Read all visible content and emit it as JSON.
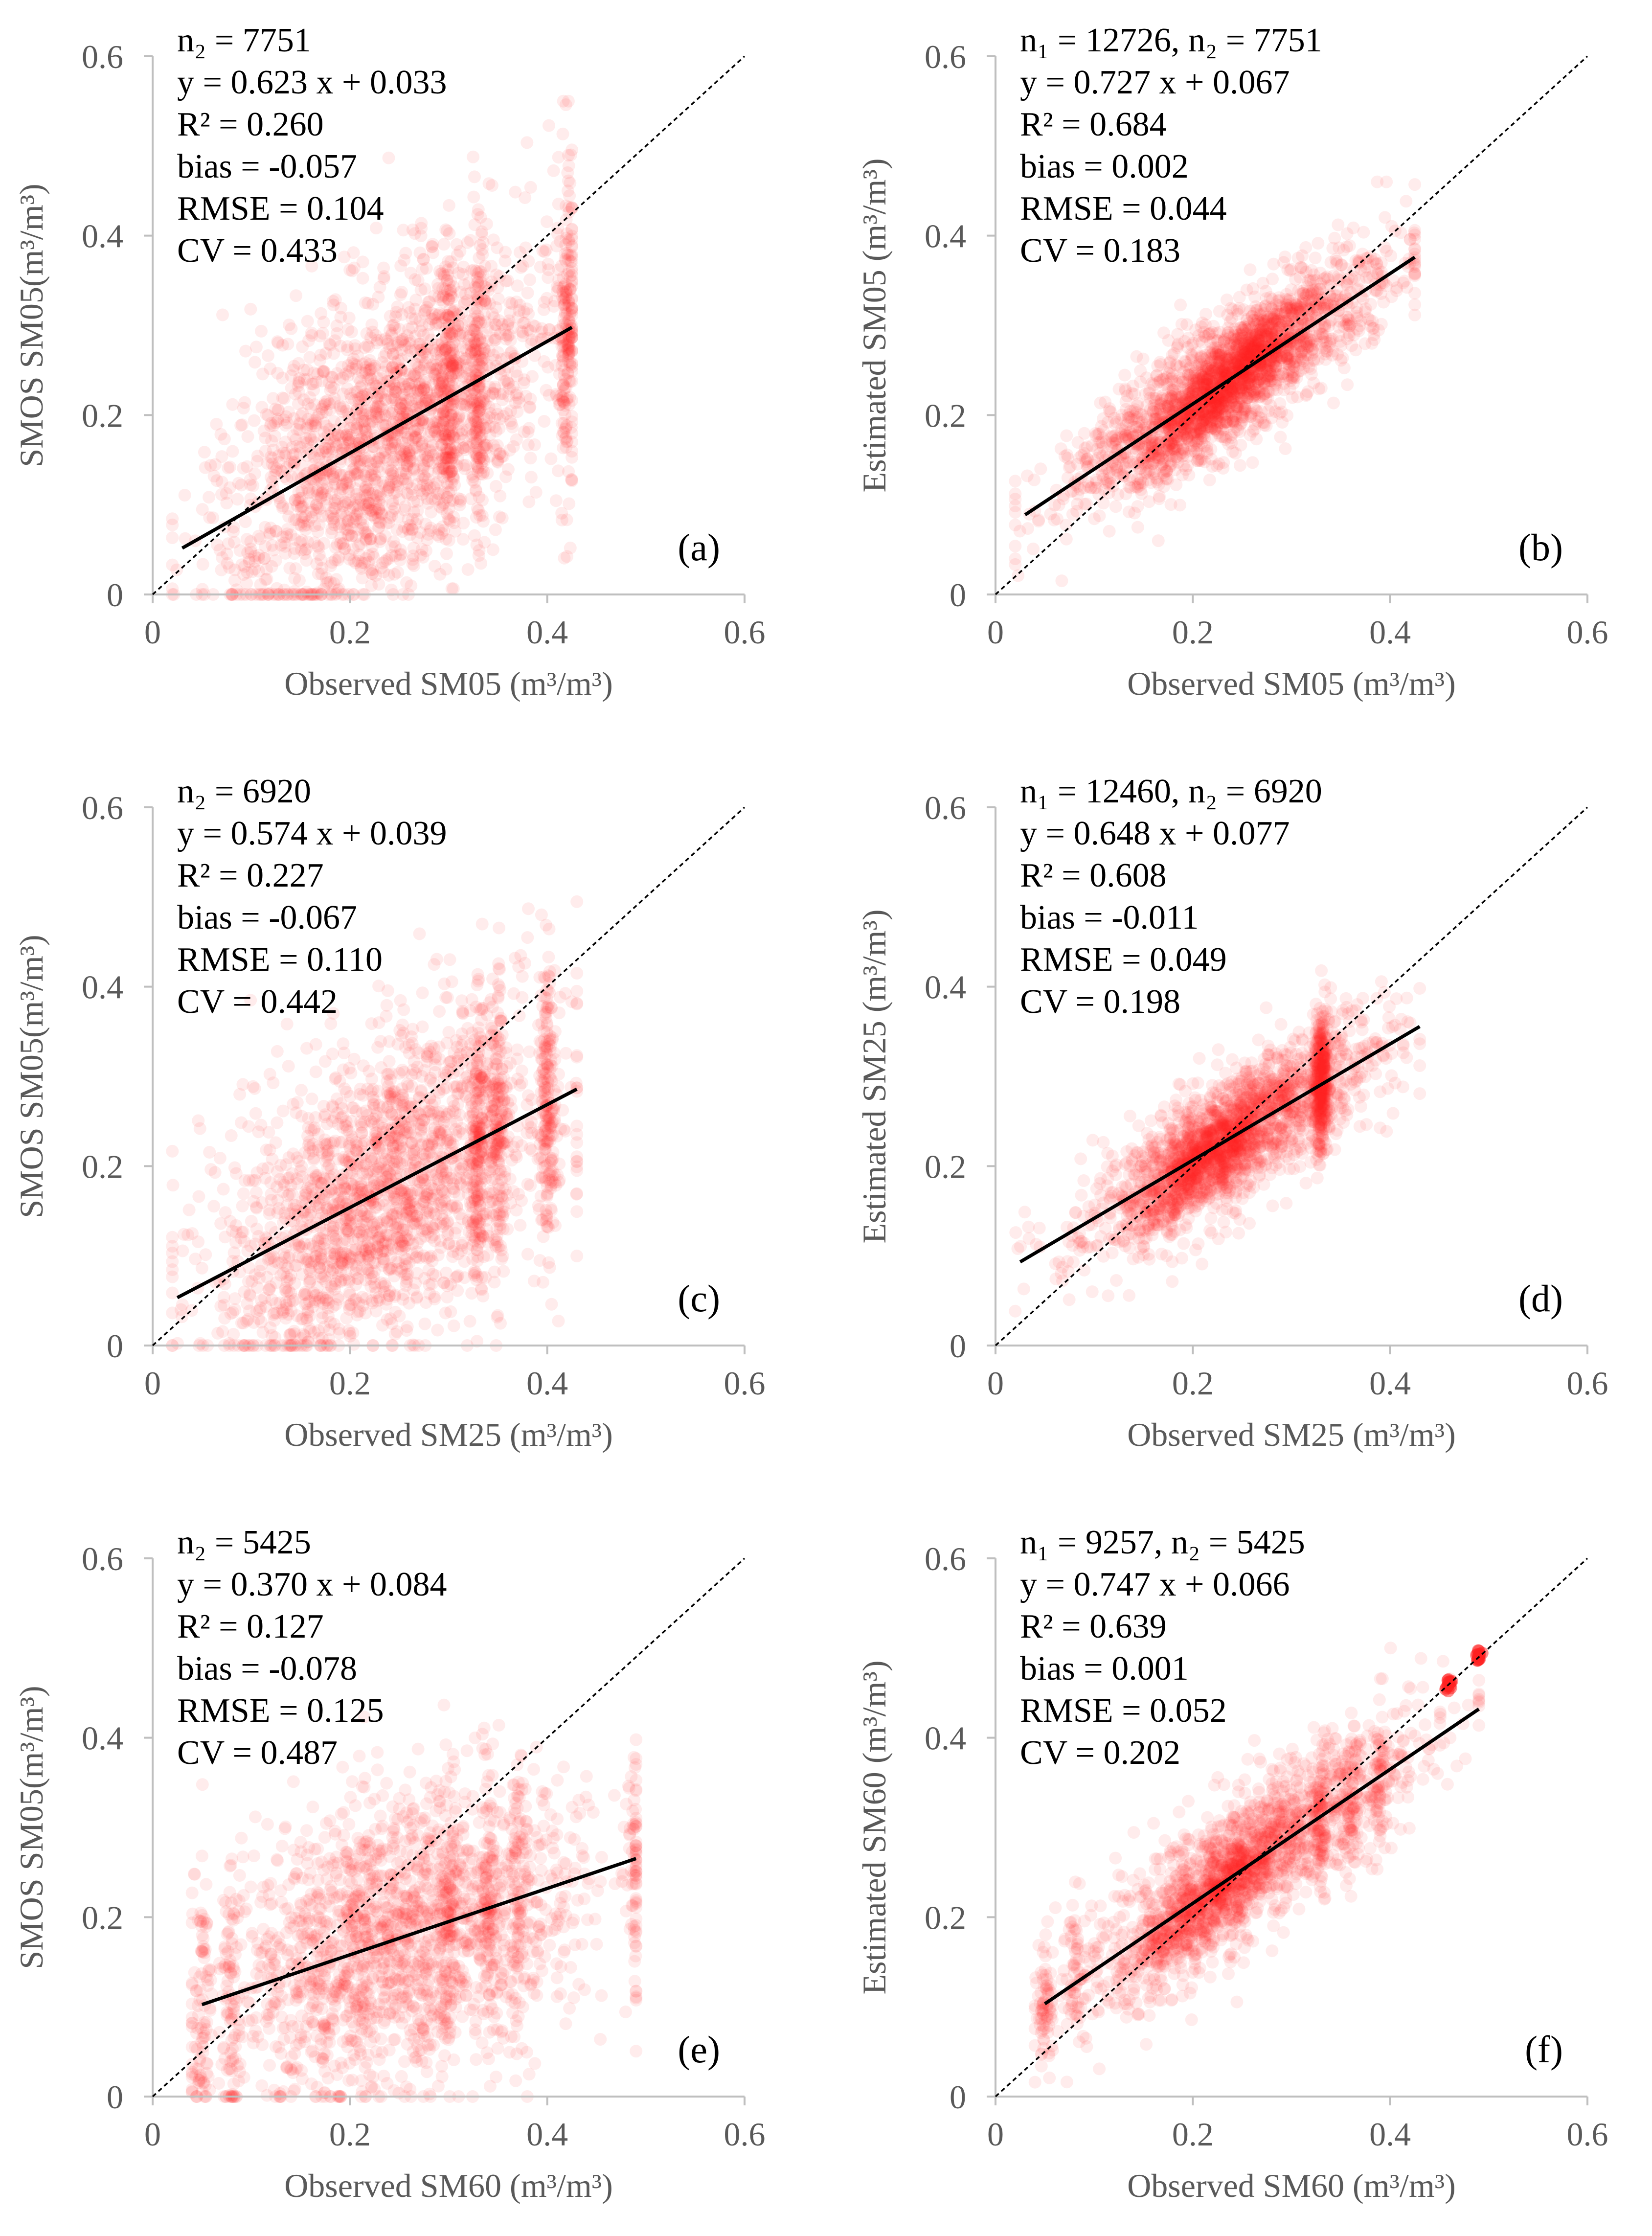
{
  "figure": {
    "colors": {
      "points": "#ff2020",
      "fit_line": "#000000",
      "identity_line": "#000000",
      "axis": "#bfbfbf",
      "tick_text": "#595959"
    }
  },
  "chart_data": [
    {
      "type": "scatter",
      "panel": "(a)",
      "xlabel": "Observed SM05 (m³/m³)",
      "ylabel": "SMOS SM05(m³/m³)",
      "xlim": [
        0,
        0.6
      ],
      "ylim": [
        0,
        0.6
      ],
      "xticks": [
        "0",
        "0.2",
        "0.4",
        "0.6"
      ],
      "yticks": [
        "0",
        "0.2",
        "0.4",
        "0.6"
      ],
      "stats": [
        "n₂ = 7751",
        "y = 0.623 x + 0.033",
        "R² = 0.260",
        "bias = -0.057",
        "RMSE = 0.104",
        "CV = 0.433"
      ],
      "fit": {
        "slope": 0.623,
        "intercept": 0.033,
        "x_range": [
          0.03,
          0.425
        ]
      },
      "cloud": {
        "seed": 11,
        "count": 2600,
        "x_range": [
          0.02,
          0.425
        ],
        "x_center": 0.24,
        "x_sd": 0.085,
        "noise_sd": 0.085,
        "y_max": 0.55,
        "stripes": [
          0.3,
          0.33,
          0.42
        ],
        "saturation": [],
        "cluster": null
      }
    },
    {
      "type": "scatter",
      "panel": "(b)",
      "xlabel": "Observed SM05 (m³/m³)",
      "ylabel": "Estimated SM05 (m³/m³)",
      "xlim": [
        0,
        0.6
      ],
      "ylim": [
        0,
        0.6
      ],
      "xticks": [
        "0",
        "0.2",
        "0.4",
        "0.6"
      ],
      "yticks": [
        "0",
        "0.2",
        "0.4",
        "0.6"
      ],
      "stats": [
        "n₁ = 12726, n₂ = 7751",
        "y = 0.727 x + 0.067",
        "R² = 0.684",
        "bias = 0.002",
        "RMSE = 0.044",
        "CV = 0.183"
      ],
      "fit": {
        "slope": 0.727,
        "intercept": 0.067,
        "x_range": [
          0.03,
          0.425
        ]
      },
      "cloud": {
        "seed": 23,
        "count": 2800,
        "x_range": [
          0.02,
          0.425
        ],
        "x_center": 0.235,
        "x_sd": 0.075,
        "noise_sd": 0.036,
        "y_max": 0.46,
        "stripes": [],
        "saturation": [],
        "cluster": [
          0.24,
          0.225
        ]
      }
    },
    {
      "type": "scatter",
      "panel": "(c)",
      "xlabel": "Observed SM25 (m³/m³)",
      "ylabel": "SMOS SM05(m³/m³)",
      "xlim": [
        0,
        0.6
      ],
      "ylim": [
        0,
        0.6
      ],
      "xticks": [
        "0",
        "0.2",
        "0.4",
        "0.6"
      ],
      "yticks": [
        "0",
        "0.2",
        "0.4",
        "0.6"
      ],
      "stats": [
        "n₂ = 6920",
        "y = 0.574 x + 0.039",
        "R² = 0.227",
        "bias = -0.067",
        "RMSE = 0.110",
        "CV =  0.442"
      ],
      "fit": {
        "slope": 0.574,
        "intercept": 0.039,
        "x_range": [
          0.025,
          0.43
        ]
      },
      "cloud": {
        "seed": 37,
        "count": 2500,
        "x_range": [
          0.02,
          0.43
        ],
        "x_center": 0.23,
        "x_sd": 0.085,
        "noise_sd": 0.085,
        "y_max": 0.55,
        "stripes": [
          0.33,
          0.35,
          0.4
        ],
        "saturation": [],
        "cluster": null
      }
    },
    {
      "type": "scatter",
      "panel": "(d)",
      "xlabel": "Observed SM25 (m³/m³)",
      "ylabel": "Estimated SM25 (m³/m³)",
      "xlim": [
        0,
        0.6
      ],
      "ylim": [
        0,
        0.6
      ],
      "xticks": [
        "0",
        "0.2",
        "0.4",
        "0.6"
      ],
      "yticks": [
        "0",
        "0.2",
        "0.4",
        "0.6"
      ],
      "stats": [
        "n₁ = 12460, n₂ = 6920",
        "y = 0.648 x + 0.077",
        "R² = 0.608",
        "bias = -0.011",
        "RMSE = 0.049",
        "CV = 0.198"
      ],
      "fit": {
        "slope": 0.648,
        "intercept": 0.077,
        "x_range": [
          0.025,
          0.43
        ]
      },
      "cloud": {
        "seed": 41,
        "count": 2700,
        "x_range": [
          0.02,
          0.43
        ],
        "x_center": 0.24,
        "x_sd": 0.075,
        "noise_sd": 0.038,
        "y_max": 0.44,
        "stripes": [
          0.33
        ],
        "saturation": [],
        "cluster": [
          0.22,
          0.2
        ]
      }
    },
    {
      "type": "scatter",
      "panel": "(e)",
      "xlabel": "Observed SM60 (m³/m³)",
      "ylabel": "SMOS SM05(m³/m³)",
      "xlim": [
        0,
        0.6
      ],
      "ylim": [
        0,
        0.6
      ],
      "xticks": [
        "0",
        "0.2",
        "0.4",
        "0.6"
      ],
      "yticks": [
        "0",
        "0.2",
        "0.4",
        "0.6"
      ],
      "stats": [
        "n₂ = 5425",
        "y = 0.370 x + 0.084",
        "R² = 0.127",
        "bias = -0.078",
        "RMSE = 0.125",
        "CV = 0.487"
      ],
      "fit": {
        "slope": 0.37,
        "intercept": 0.084,
        "x_range": [
          0.05,
          0.49
        ]
      },
      "cloud": {
        "seed": 53,
        "count": 2300,
        "x_range": [
          0.04,
          0.49
        ],
        "x_center": 0.25,
        "x_sd": 0.09,
        "noise_sd": 0.08,
        "y_max": 0.55,
        "stripes": [
          0.05,
          0.08,
          0.3,
          0.34,
          0.37,
          0.49
        ],
        "saturation": [],
        "cluster": null
      }
    },
    {
      "type": "scatter",
      "panel": "(f)",
      "xlabel": "Observed SM60 (m³/m³)",
      "ylabel": "Estimated SM60 (m³/m³)",
      "xlim": [
        0,
        0.6
      ],
      "ylim": [
        0,
        0.6
      ],
      "xticks": [
        "0",
        "0.2",
        "0.4",
        "0.6"
      ],
      "yticks": [
        "0",
        "0.2",
        "0.4",
        "0.6"
      ],
      "stats": [
        "n₁ = 9257, n₂ = 5425",
        "y = 0.747 x + 0.066",
        "R² = 0.639",
        "bias = 0.001",
        "RMSE = 0.052",
        "CV = 0.202"
      ],
      "fit": {
        "slope": 0.747,
        "intercept": 0.066,
        "x_range": [
          0.05,
          0.49
        ]
      },
      "cloud": {
        "seed": 67,
        "count": 2400,
        "x_range": [
          0.04,
          0.49
        ],
        "x_center": 0.26,
        "x_sd": 0.085,
        "noise_sd": 0.042,
        "y_max": 0.5,
        "stripes": [
          0.05,
          0.08,
          0.33,
          0.36,
          0.39
        ],
        "saturation": [
          0.46,
          0.49
        ],
        "cluster": [
          0.22,
          0.21
        ]
      }
    }
  ]
}
